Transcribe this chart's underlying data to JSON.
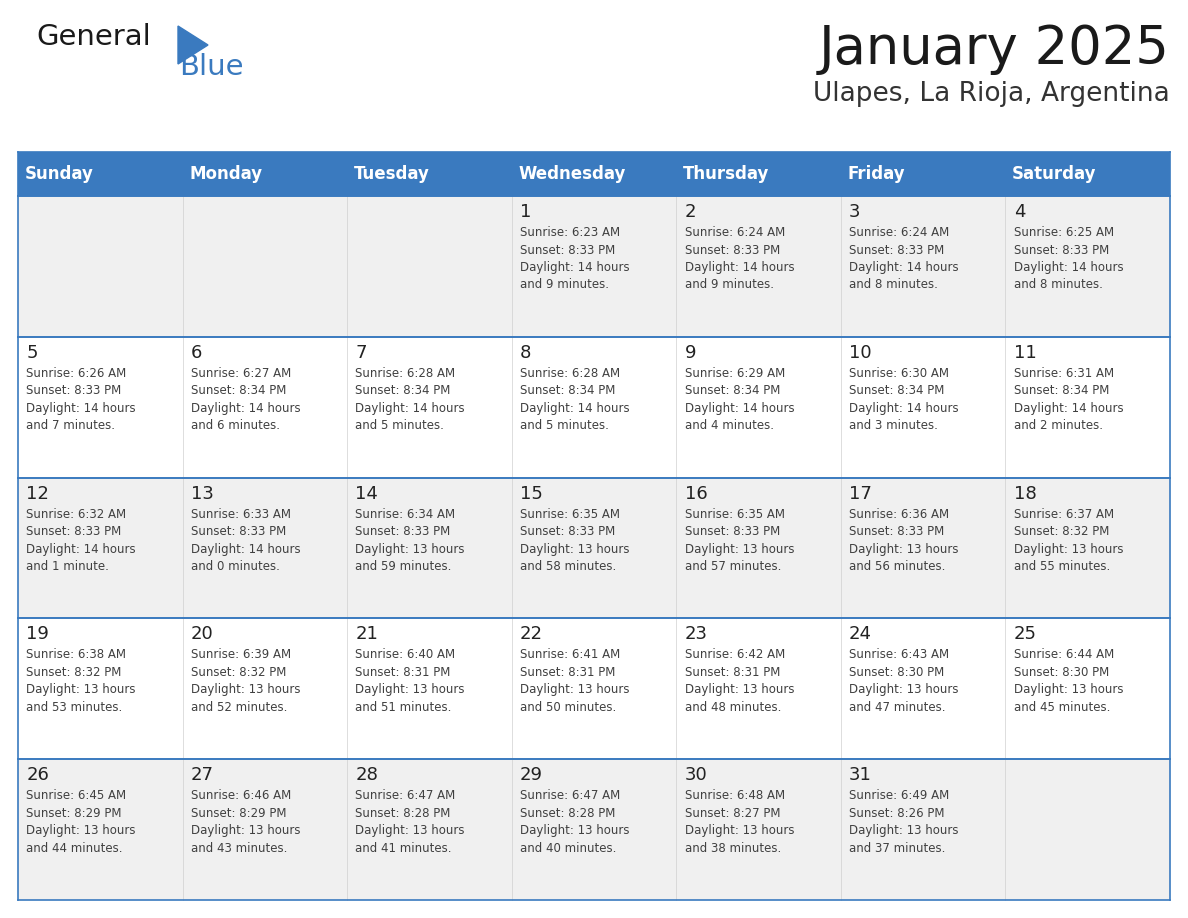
{
  "title": "January 2025",
  "subtitle": "Ulapes, La Rioja, Argentina",
  "header_bg": "#3a7abf",
  "header_text_color": "#ffffff",
  "days_of_week": [
    "Sunday",
    "Monday",
    "Tuesday",
    "Wednesday",
    "Thursday",
    "Friday",
    "Saturday"
  ],
  "weeks": [
    [
      {
        "day": "",
        "info": ""
      },
      {
        "day": "",
        "info": ""
      },
      {
        "day": "",
        "info": ""
      },
      {
        "day": "1",
        "info": "Sunrise: 6:23 AM\nSunset: 8:33 PM\nDaylight: 14 hours\nand 9 minutes."
      },
      {
        "day": "2",
        "info": "Sunrise: 6:24 AM\nSunset: 8:33 PM\nDaylight: 14 hours\nand 9 minutes."
      },
      {
        "day": "3",
        "info": "Sunrise: 6:24 AM\nSunset: 8:33 PM\nDaylight: 14 hours\nand 8 minutes."
      },
      {
        "day": "4",
        "info": "Sunrise: 6:25 AM\nSunset: 8:33 PM\nDaylight: 14 hours\nand 8 minutes."
      }
    ],
    [
      {
        "day": "5",
        "info": "Sunrise: 6:26 AM\nSunset: 8:33 PM\nDaylight: 14 hours\nand 7 minutes."
      },
      {
        "day": "6",
        "info": "Sunrise: 6:27 AM\nSunset: 8:34 PM\nDaylight: 14 hours\nand 6 minutes."
      },
      {
        "day": "7",
        "info": "Sunrise: 6:28 AM\nSunset: 8:34 PM\nDaylight: 14 hours\nand 5 minutes."
      },
      {
        "day": "8",
        "info": "Sunrise: 6:28 AM\nSunset: 8:34 PM\nDaylight: 14 hours\nand 5 minutes."
      },
      {
        "day": "9",
        "info": "Sunrise: 6:29 AM\nSunset: 8:34 PM\nDaylight: 14 hours\nand 4 minutes."
      },
      {
        "day": "10",
        "info": "Sunrise: 6:30 AM\nSunset: 8:34 PM\nDaylight: 14 hours\nand 3 minutes."
      },
      {
        "day": "11",
        "info": "Sunrise: 6:31 AM\nSunset: 8:34 PM\nDaylight: 14 hours\nand 2 minutes."
      }
    ],
    [
      {
        "day": "12",
        "info": "Sunrise: 6:32 AM\nSunset: 8:33 PM\nDaylight: 14 hours\nand 1 minute."
      },
      {
        "day": "13",
        "info": "Sunrise: 6:33 AM\nSunset: 8:33 PM\nDaylight: 14 hours\nand 0 minutes."
      },
      {
        "day": "14",
        "info": "Sunrise: 6:34 AM\nSunset: 8:33 PM\nDaylight: 13 hours\nand 59 minutes."
      },
      {
        "day": "15",
        "info": "Sunrise: 6:35 AM\nSunset: 8:33 PM\nDaylight: 13 hours\nand 58 minutes."
      },
      {
        "day": "16",
        "info": "Sunrise: 6:35 AM\nSunset: 8:33 PM\nDaylight: 13 hours\nand 57 minutes."
      },
      {
        "day": "17",
        "info": "Sunrise: 6:36 AM\nSunset: 8:33 PM\nDaylight: 13 hours\nand 56 minutes."
      },
      {
        "day": "18",
        "info": "Sunrise: 6:37 AM\nSunset: 8:32 PM\nDaylight: 13 hours\nand 55 minutes."
      }
    ],
    [
      {
        "day": "19",
        "info": "Sunrise: 6:38 AM\nSunset: 8:32 PM\nDaylight: 13 hours\nand 53 minutes."
      },
      {
        "day": "20",
        "info": "Sunrise: 6:39 AM\nSunset: 8:32 PM\nDaylight: 13 hours\nand 52 minutes."
      },
      {
        "day": "21",
        "info": "Sunrise: 6:40 AM\nSunset: 8:31 PM\nDaylight: 13 hours\nand 51 minutes."
      },
      {
        "day": "22",
        "info": "Sunrise: 6:41 AM\nSunset: 8:31 PM\nDaylight: 13 hours\nand 50 minutes."
      },
      {
        "day": "23",
        "info": "Sunrise: 6:42 AM\nSunset: 8:31 PM\nDaylight: 13 hours\nand 48 minutes."
      },
      {
        "day": "24",
        "info": "Sunrise: 6:43 AM\nSunset: 8:30 PM\nDaylight: 13 hours\nand 47 minutes."
      },
      {
        "day": "25",
        "info": "Sunrise: 6:44 AM\nSunset: 8:30 PM\nDaylight: 13 hours\nand 45 minutes."
      }
    ],
    [
      {
        "day": "26",
        "info": "Sunrise: 6:45 AM\nSunset: 8:29 PM\nDaylight: 13 hours\nand 44 minutes."
      },
      {
        "day": "27",
        "info": "Sunrise: 6:46 AM\nSunset: 8:29 PM\nDaylight: 13 hours\nand 43 minutes."
      },
      {
        "day": "28",
        "info": "Sunrise: 6:47 AM\nSunset: 8:28 PM\nDaylight: 13 hours\nand 41 minutes."
      },
      {
        "day": "29",
        "info": "Sunrise: 6:47 AM\nSunset: 8:28 PM\nDaylight: 13 hours\nand 40 minutes."
      },
      {
        "day": "30",
        "info": "Sunrise: 6:48 AM\nSunset: 8:27 PM\nDaylight: 13 hours\nand 38 minutes."
      },
      {
        "day": "31",
        "info": "Sunrise: 6:49 AM\nSunset: 8:26 PM\nDaylight: 13 hours\nand 37 minutes."
      },
      {
        "day": "",
        "info": ""
      }
    ]
  ],
  "logo_text1": "General",
  "logo_text2": "Blue",
  "logo_triangle_color": "#3a7abf",
  "cell_bg_even": "#f0f0f0",
  "cell_bg_odd": "#ffffff",
  "divider_color": "#3a7abf",
  "text_color": "#404040",
  "day_num_color": "#222222",
  "title_fontsize": 38,
  "subtitle_fontsize": 19,
  "header_fontsize": 12,
  "day_num_fontsize": 13,
  "cell_text_fontsize": 8.5
}
